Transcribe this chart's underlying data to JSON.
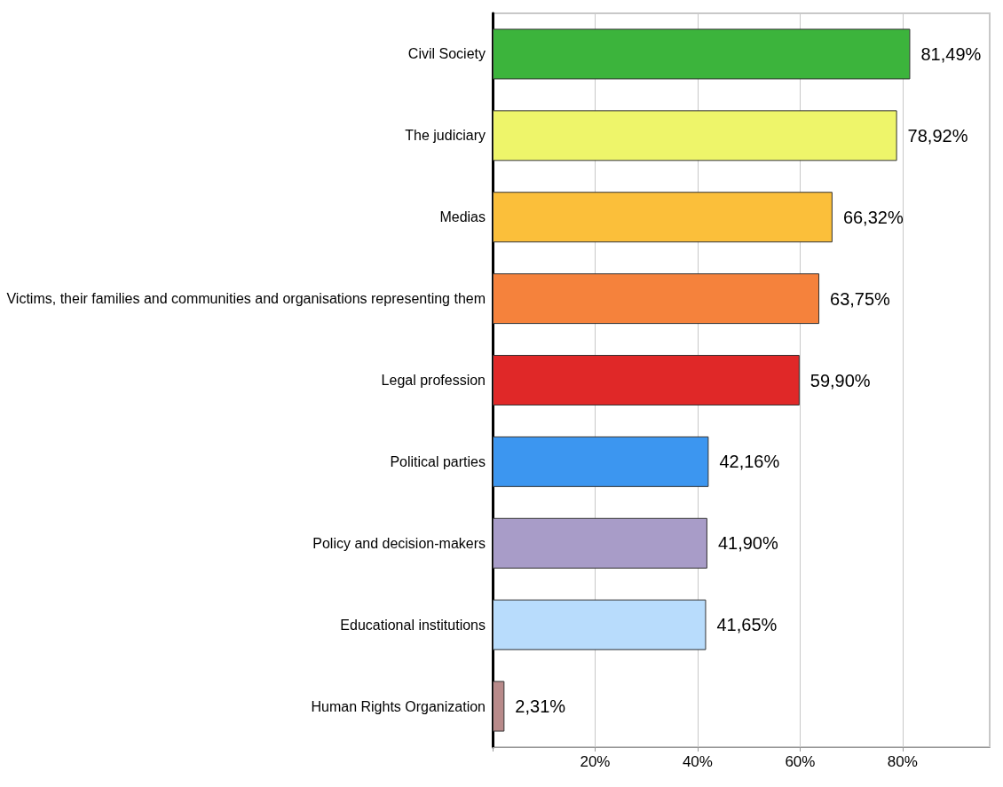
{
  "chart_data": {
    "type": "bar",
    "orientation": "horizontal",
    "categories": [
      "Civil Society",
      "The judiciary",
      "Medias",
      "Victims, their families and communities and organisations representing them",
      "Legal profession",
      "Political parties",
      "Policy and decision-makers",
      "Educational institutions",
      "Human Rights Organization"
    ],
    "values": [
      81.49,
      78.92,
      66.32,
      63.75,
      59.9,
      42.16,
      41.9,
      41.65,
      2.31
    ],
    "value_labels": [
      "81,49%",
      "78,92%",
      "66,32%",
      "63,75%",
      "59,90%",
      "42,16%",
      "41,90%",
      "41,65%",
      "2,31%"
    ],
    "colors": [
      "#3cb43c",
      "#eef56a",
      "#fbbf3a",
      "#f5823c",
      "#e02828",
      "#3c96f0",
      "#a89cc8",
      "#b8dcfc",
      "#b88a8a"
    ],
    "xlim": [
      0,
      97
    ],
    "xticks": [
      {
        "value": 0,
        "label": null
      },
      {
        "value": 20,
        "label": "20%"
      },
      {
        "value": 40,
        "label": "40%"
      },
      {
        "value": 60,
        "label": "60%"
      },
      {
        "value": 80,
        "label": "80%"
      }
    ],
    "grid": "x"
  }
}
